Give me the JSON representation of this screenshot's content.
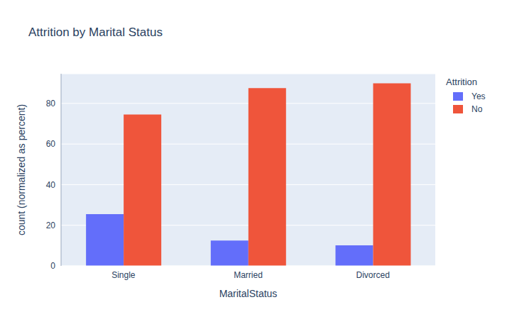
{
  "chart_data": {
    "type": "bar",
    "title": "Attrition by Marital Status",
    "x_label": "MaritalStatus",
    "y_label": "count (normalized as percent)",
    "categories": [
      "Single",
      "Married",
      "Divorced"
    ],
    "series": [
      {
        "name": "Yes",
        "color": "#636efa",
        "values": [
          25.5,
          12.5,
          10.1
        ]
      },
      {
        "name": "No",
        "color": "#EF553B",
        "values": [
          74.5,
          87.5,
          89.9
        ]
      }
    ],
    "ylim": [
      0,
      94.6
    ],
    "yticks": [
      0,
      20,
      40,
      60,
      80
    ],
    "grid": true,
    "legend": "right",
    "legend_title": "Attrition"
  }
}
